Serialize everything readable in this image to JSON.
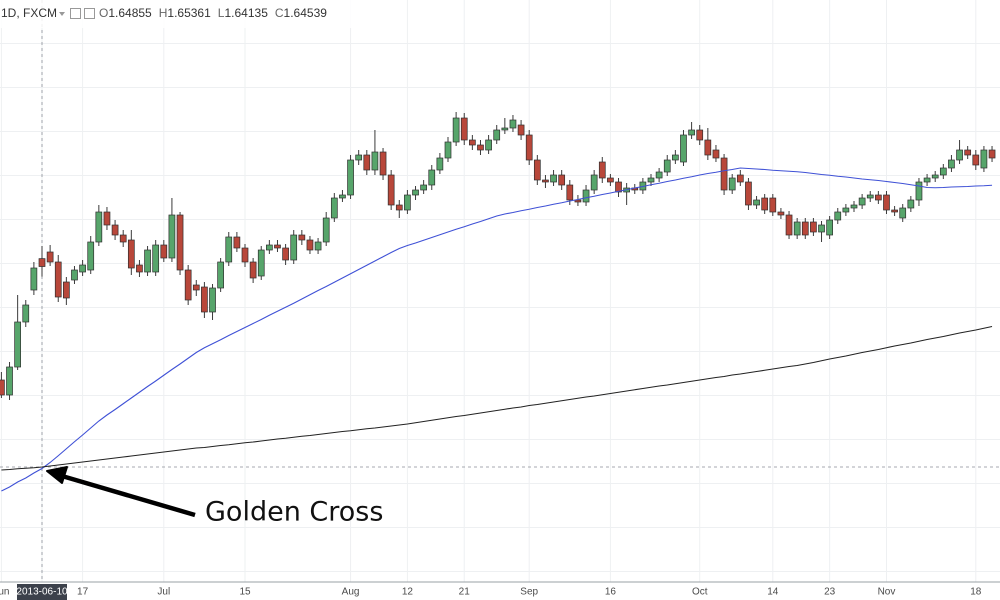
{
  "header": {
    "symbol": "1D, FXCM",
    "labels": [
      "O",
      "H",
      "L",
      "C"
    ]
  },
  "chart_data": {
    "type": "candlestick",
    "annotation": "Golden Cross",
    "up_color": "#57a56b",
    "down_color": "#b8473a",
    "ylim": [
      1.52,
      1.752
    ],
    "categories": [
      "Jun",
      null,
      null,
      null,
      null,
      "2013-06-10",
      null,
      null,
      null,
      null,
      "17",
      null,
      null,
      null,
      null,
      null,
      null,
      null,
      null,
      null,
      "Jul",
      null,
      null,
      null,
      null,
      null,
      null,
      null,
      null,
      null,
      "15",
      null,
      null,
      null,
      null,
      null,
      null,
      null,
      null,
      null,
      null,
      null,
      null,
      "Aug",
      null,
      null,
      null,
      null,
      null,
      null,
      "12",
      null,
      null,
      null,
      null,
      null,
      null,
      "21",
      null,
      null,
      null,
      null,
      null,
      null,
      null,
      "Sep",
      null,
      null,
      null,
      null,
      null,
      null,
      null,
      null,
      null,
      "16",
      null,
      null,
      null,
      null,
      null,
      null,
      null,
      null,
      null,
      null,
      "Oct",
      null,
      null,
      null,
      null,
      null,
      null,
      null,
      null,
      "14",
      null,
      null,
      null,
      null,
      null,
      null,
      "23",
      null,
      null,
      null,
      null,
      null,
      null,
      "Nov",
      null,
      null,
      null,
      null,
      null,
      null,
      null,
      null,
      null,
      null,
      "18",
      null,
      null
    ],
    "open": [
      1.6,
      1.594,
      1.6052,
      1.6232,
      1.636,
      1.64855,
      1.6512,
      1.6472,
      1.6392,
      1.64,
      1.6432,
      1.644,
      1.6552,
      1.6672,
      1.662,
      1.658,
      1.656,
      1.646,
      1.6432,
      1.6432,
      1.654,
      1.6488,
      1.666,
      1.644,
      1.638,
      1.6372,
      1.6272,
      1.6368,
      1.6472,
      1.6572,
      1.6528,
      1.6472,
      1.6416,
      1.652,
      1.654,
      1.6528,
      1.648,
      1.658,
      1.656,
      1.652,
      1.6552,
      1.6648,
      1.6728,
      1.674,
      1.688,
      1.69,
      1.684,
      1.6912,
      1.682,
      1.67,
      1.668,
      1.674,
      1.676,
      1.678,
      1.684,
      1.6888,
      1.6952,
      1.7048,
      1.696,
      1.694,
      1.692,
      1.696,
      1.7,
      1.7008,
      1.702,
      1.698,
      1.688,
      1.68,
      1.6792,
      1.682,
      1.678,
      1.672,
      1.6712,
      1.676,
      1.6872,
      1.6808,
      1.6792,
      1.6752,
      1.6768,
      1.676,
      1.6792,
      1.6808,
      1.6832,
      1.688,
      1.6872,
      1.698,
      1.7,
      1.696,
      1.692,
      1.6888,
      1.676,
      1.682,
      1.6792,
      1.67,
      1.6728,
      1.6728,
      1.6672,
      1.666,
      1.658,
      1.6632,
      1.6632,
      1.6592,
      1.658,
      1.664,
      1.6672,
      1.6688,
      1.67,
      1.6728,
      1.674,
      1.674,
      1.668,
      1.6648,
      1.6688,
      1.672,
      1.6792,
      1.6808,
      1.682,
      1.6848,
      1.688,
      1.692,
      1.69,
      1.6848,
      1.692
    ],
    "high": [
      1.6032,
      1.6072,
      1.634,
      1.632,
      1.6472,
      1.65361,
      1.654,
      1.65,
      1.6412,
      1.6456,
      1.648,
      1.6576,
      1.67,
      1.6692,
      1.664,
      1.66,
      1.66,
      1.648,
      1.6536,
      1.656,
      1.656,
      1.6728,
      1.6672,
      1.646,
      1.64,
      1.6392,
      1.6384,
      1.6488,
      1.6592,
      1.6592,
      1.6544,
      1.6488,
      1.6536,
      1.656,
      1.656,
      1.6544,
      1.66,
      1.66,
      1.6576,
      1.6568,
      1.6672,
      1.6748,
      1.676,
      1.69,
      1.692,
      1.692,
      1.7,
      1.6928,
      1.684,
      1.672,
      1.676,
      1.6776,
      1.68,
      1.686,
      1.6908,
      1.6972,
      1.7072,
      1.7068,
      1.698,
      1.696,
      1.698,
      1.702,
      1.7048,
      1.706,
      1.704,
      1.7,
      1.69,
      1.682,
      1.684,
      1.684,
      1.68,
      1.674,
      1.678,
      1.684,
      1.6892,
      1.6824,
      1.6808,
      1.6788,
      1.6784,
      1.6808,
      1.6824,
      1.6848,
      1.69,
      1.692,
      1.7,
      1.7032,
      1.702,
      1.7008,
      1.694,
      1.6904,
      1.6824,
      1.684,
      1.6808,
      1.6736,
      1.6744,
      1.6744,
      1.6688,
      1.6676,
      1.6648,
      1.6648,
      1.6648,
      1.6636,
      1.6656,
      1.6688,
      1.6704,
      1.6716,
      1.6744,
      1.6756,
      1.6756,
      1.6756,
      1.6696,
      1.6704,
      1.6736,
      1.6808,
      1.6824,
      1.6836,
      1.6864,
      1.69,
      1.696,
      1.6936,
      1.692,
      1.6936,
      1.6936
    ],
    "low": [
      1.5928,
      1.592,
      1.604,
      1.6212,
      1.634,
      1.64135,
      1.6456,
      1.6312,
      1.63,
      1.6384,
      1.6416,
      1.6424,
      1.6536,
      1.66,
      1.656,
      1.6532,
      1.642,
      1.6412,
      1.6416,
      1.6416,
      1.6472,
      1.6472,
      1.642,
      1.63,
      1.6336,
      1.6248,
      1.624,
      1.6352,
      1.6456,
      1.6512,
      1.6452,
      1.6388,
      1.64,
      1.6504,
      1.6512,
      1.646,
      1.6464,
      1.654,
      1.6504,
      1.6504,
      1.6536,
      1.6632,
      1.6712,
      1.6724,
      1.686,
      1.682,
      1.682,
      1.68,
      1.668,
      1.6648,
      1.6664,
      1.672,
      1.6744,
      1.676,
      1.6824,
      1.6872,
      1.6936,
      1.694,
      1.692,
      1.69,
      1.6904,
      1.6944,
      1.6984,
      1.6992,
      1.696,
      1.686,
      1.678,
      1.6768,
      1.6776,
      1.676,
      1.67,
      1.6696,
      1.6696,
      1.6744,
      1.6788,
      1.6776,
      1.6732,
      1.67,
      1.6744,
      1.6744,
      1.6776,
      1.6792,
      1.6816,
      1.6864,
      1.6856,
      1.6964,
      1.694,
      1.688,
      1.6872,
      1.674,
      1.6744,
      1.6776,
      1.668,
      1.6684,
      1.6664,
      1.6656,
      1.6644,
      1.6564,
      1.6564,
      1.6564,
      1.6576,
      1.6552,
      1.6564,
      1.6624,
      1.6656,
      1.6672,
      1.6684,
      1.6712,
      1.6704,
      1.6664,
      1.6656,
      1.6632,
      1.6672,
      1.6696,
      1.6776,
      1.6792,
      1.6804,
      1.6832,
      1.6864,
      1.6884,
      1.684,
      1.6832,
      1.6872
    ],
    "close": [
      1.594,
      1.6052,
      1.6232,
      1.63,
      1.6448,
      1.64539,
      1.6472,
      1.6332,
      1.6328,
      1.644,
      1.646,
      1.6552,
      1.6672,
      1.662,
      1.658,
      1.6552,
      1.6448,
      1.6432,
      1.652,
      1.654,
      1.6488,
      1.666,
      1.644,
      1.632,
      1.636,
      1.6272,
      1.6368,
      1.6472,
      1.6572,
      1.6528,
      1.6472,
      1.6408,
      1.652,
      1.654,
      1.6528,
      1.648,
      1.658,
      1.656,
      1.652,
      1.6552,
      1.6648,
      1.6728,
      1.674,
      1.688,
      1.69,
      1.684,
      1.6912,
      1.682,
      1.67,
      1.668,
      1.674,
      1.676,
      1.678,
      1.684,
      1.6888,
      1.6952,
      1.7048,
      1.696,
      1.694,
      1.692,
      1.696,
      1.7,
      1.7008,
      1.704,
      1.698,
      1.688,
      1.68,
      1.6792,
      1.682,
      1.678,
      1.672,
      1.6712,
      1.676,
      1.682,
      1.6808,
      1.6792,
      1.6752,
      1.6768,
      1.676,
      1.6792,
      1.6808,
      1.6832,
      1.688,
      1.69,
      1.698,
      1.7,
      1.696,
      1.69,
      1.6888,
      1.676,
      1.6808,
      1.6792,
      1.67,
      1.672,
      1.668,
      1.6672,
      1.666,
      1.658,
      1.6632,
      1.658,
      1.6592,
      1.662,
      1.664,
      1.6672,
      1.6688,
      1.67,
      1.6728,
      1.674,
      1.672,
      1.668,
      1.6672,
      1.6688,
      1.672,
      1.6792,
      1.6808,
      1.682,
      1.6848,
      1.688,
      1.692,
      1.69,
      1.686,
      1.692,
      1.6888
    ],
    "series": [
      {
        "color": "#3f51d6",
        "values": [
          1.5556,
          1.5572,
          1.5592,
          1.5608,
          1.5628,
          1.5646,
          1.567,
          1.5697,
          1.5725,
          1.5753,
          1.578,
          1.5808,
          1.5836,
          1.586,
          1.5882,
          1.5905,
          1.5928,
          1.5951,
          1.5974,
          1.5996,
          1.6019,
          1.6042,
          1.6064,
          1.6087,
          1.611,
          1.6129,
          1.6145,
          1.6161,
          1.6178,
          1.6194,
          1.621,
          1.6226,
          1.6242,
          1.6259,
          1.6275,
          1.6291,
          1.6307,
          1.6324,
          1.6341,
          1.6358,
          1.6374,
          1.6391,
          1.6408,
          1.6425,
          1.6442,
          1.6459,
          1.6476,
          1.6493,
          1.651,
          1.6526,
          1.6538,
          1.6548,
          1.6559,
          1.657,
          1.6581,
          1.6592,
          1.6603,
          1.6613,
          1.6624,
          1.6634,
          1.6645,
          1.6656,
          1.6664,
          1.667,
          1.6677,
          1.6683,
          1.669,
          1.6696,
          1.6703,
          1.6709,
          1.6716,
          1.6722,
          1.6729,
          1.6735,
          1.6742,
          1.6748,
          1.6755,
          1.6761,
          1.6768,
          1.6774,
          1.6781,
          1.6787,
          1.6794,
          1.68,
          1.6807,
          1.6813,
          1.682,
          1.6826,
          1.6831,
          1.6837,
          1.6842,
          1.6848,
          1.6846,
          1.6844,
          1.6842,
          1.6839,
          1.6837,
          1.6835,
          1.6833,
          1.683,
          1.6826,
          1.6822,
          1.6819,
          1.6815,
          1.6812,
          1.6808,
          1.6804,
          1.6801,
          1.6798,
          1.6794,
          1.679,
          1.6786,
          1.6781,
          1.6776,
          1.677,
          1.6769,
          1.677,
          1.6772,
          1.6773,
          1.6774,
          1.6776,
          1.6777,
          1.6779
        ]
      },
      {
        "color": "#222222",
        "values": [
          1.564,
          1.5642,
          1.5645,
          1.5647,
          1.5649,
          1.5652,
          1.5656,
          1.566,
          1.5664,
          1.5668,
          1.5672,
          1.5676,
          1.568,
          1.5684,
          1.5688,
          1.5692,
          1.5696,
          1.57,
          1.5704,
          1.5708,
          1.5712,
          1.5716,
          1.572,
          1.5724,
          1.5728,
          1.573,
          1.5734,
          1.5738,
          1.5741,
          1.5745,
          1.5749,
          1.5752,
          1.5756,
          1.576,
          1.5764,
          1.5767,
          1.5771,
          1.5775,
          1.5778,
          1.5782,
          1.5786,
          1.579,
          1.5794,
          1.5797,
          1.5801,
          1.5805,
          1.5808,
          1.5812,
          1.5816,
          1.582,
          1.5824,
          1.5829,
          1.5834,
          1.5839,
          1.5844,
          1.5849,
          1.5854,
          1.5858,
          1.5863,
          1.5868,
          1.5873,
          1.5878,
          1.5883,
          1.5888,
          1.5892,
          1.5898,
          1.5902,
          1.5907,
          1.5912,
          1.5917,
          1.5922,
          1.5927,
          1.5932,
          1.5936,
          1.5941,
          1.5946,
          1.5951,
          1.5956,
          1.5961,
          1.5966,
          1.5971,
          1.5976,
          1.598,
          1.5985,
          1.599,
          1.5995,
          1.6,
          1.6005,
          1.601,
          1.6014,
          1.602,
          1.6024,
          1.6029,
          1.6034,
          1.6039,
          1.6044,
          1.6049,
          1.6054,
          1.6058,
          1.6064,
          1.607,
          1.6077,
          1.6084,
          1.609,
          1.6096,
          1.6103,
          1.611,
          1.6116,
          1.6122,
          1.6129,
          1.6136,
          1.6142,
          1.6148,
          1.6155,
          1.6162,
          1.6168,
          1.6174,
          1.6181,
          1.6188,
          1.6194,
          1.62,
          1.6207,
          1.6214
        ]
      }
    ]
  }
}
